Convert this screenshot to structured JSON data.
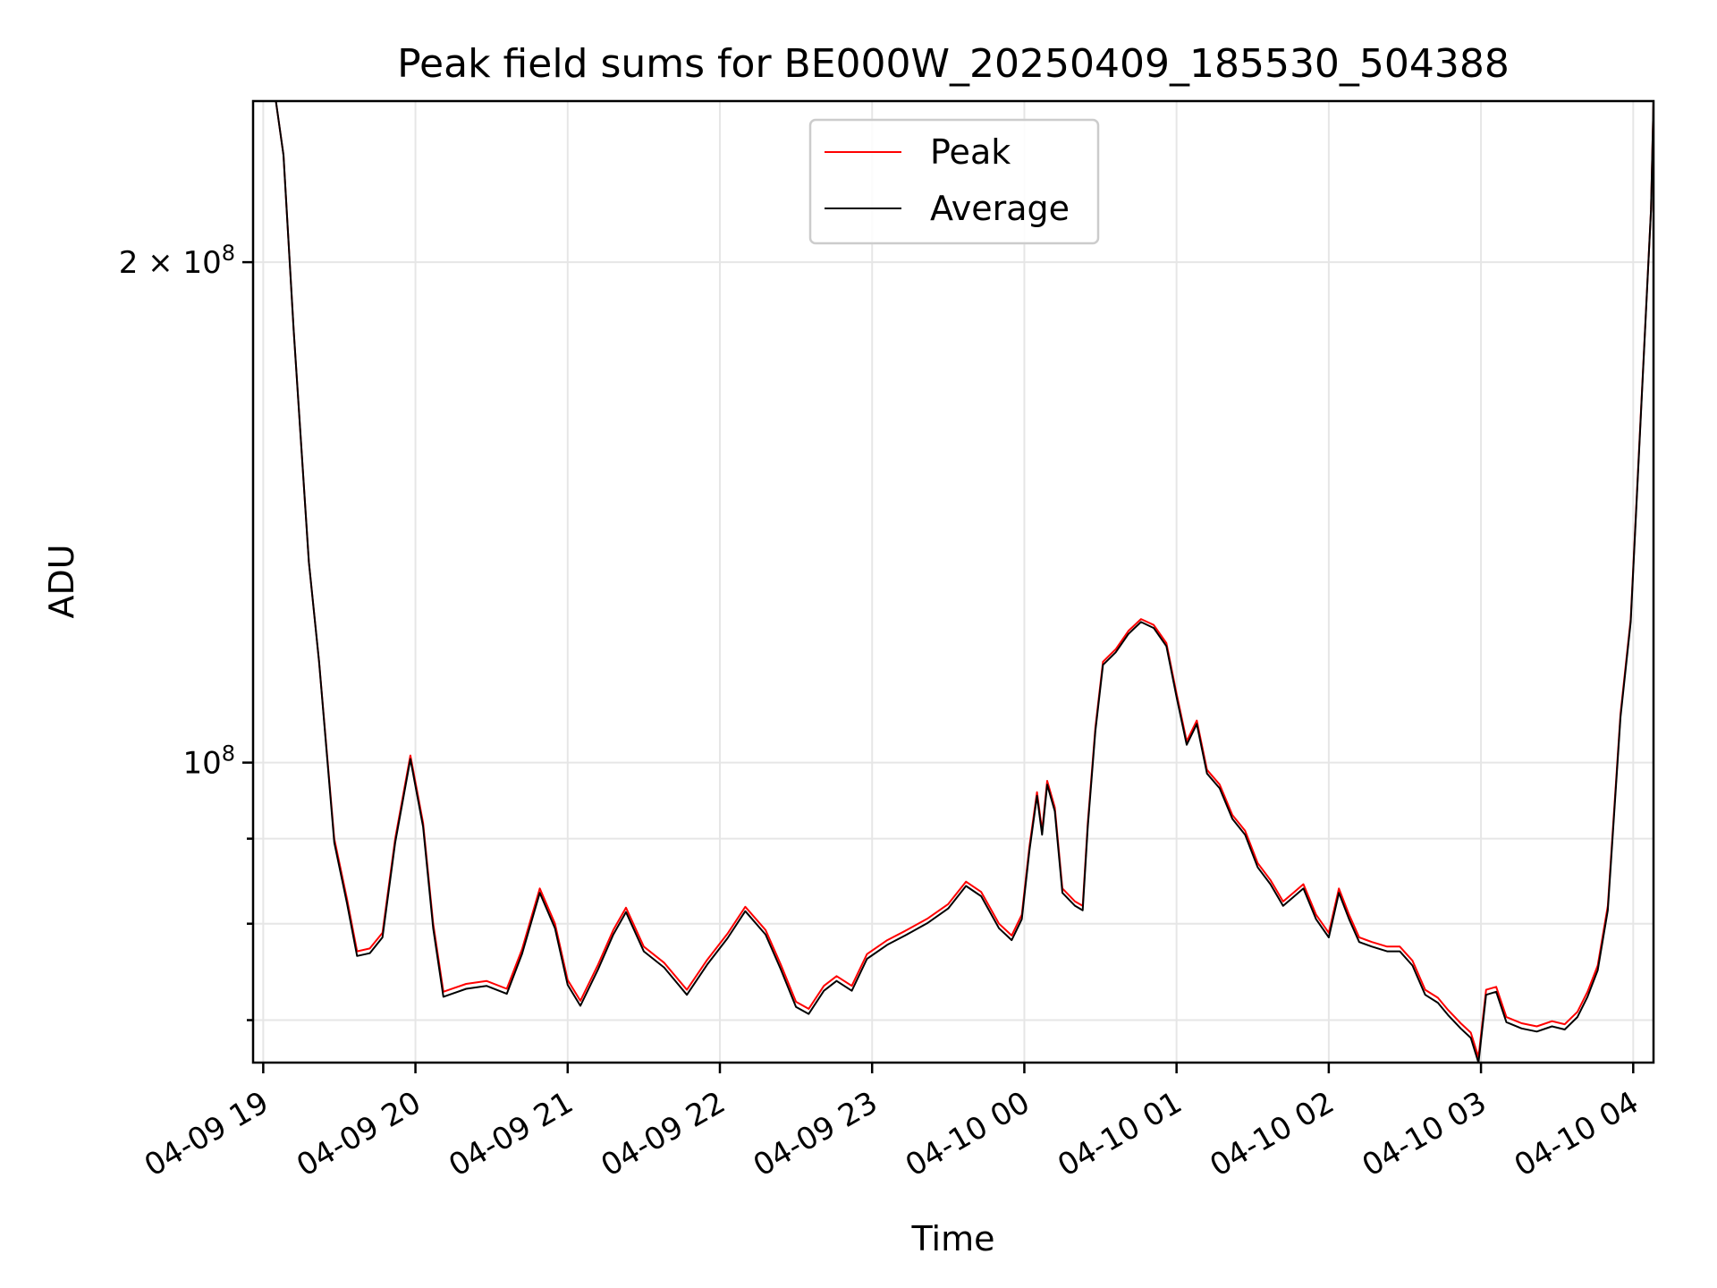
{
  "chart_data": {
    "type": "line",
    "title": "Peak field sums for BE000W_20250409_185530_504388",
    "xlabel": "Time",
    "ylabel": "ADU",
    "y_scale": "log",
    "ylim": [
      66000000,
      250000000
    ],
    "xlim": [
      "2025-04-09 18:56",
      "2025-04-10 04:08"
    ],
    "x_ticks": [
      {
        "t": "2025-04-09 19:00",
        "label": "04-09 19"
      },
      {
        "t": "2025-04-09 20:00",
        "label": "04-09 20"
      },
      {
        "t": "2025-04-09 21:00",
        "label": "04-09 21"
      },
      {
        "t": "2025-04-09 22:00",
        "label": "04-09 22"
      },
      {
        "t": "2025-04-09 23:00",
        "label": "04-09 23"
      },
      {
        "t": "2025-04-10 00:00",
        "label": "04-10 00"
      },
      {
        "t": "2025-04-10 01:00",
        "label": "04-10 01"
      },
      {
        "t": "2025-04-10 02:00",
        "label": "04-10 02"
      },
      {
        "t": "2025-04-10 03:00",
        "label": "04-10 03"
      },
      {
        "t": "2025-04-10 04:00",
        "label": "04-10 04"
      }
    ],
    "y_ticks_major": [
      {
        "value": 100000000,
        "base": "10",
        "exp": "8",
        "mult": ""
      },
      {
        "value": 200000000,
        "base": "10",
        "exp": "8",
        "mult": "2 × "
      }
    ],
    "y_ticks_minor": [
      70000000,
      80000000,
      90000000
    ],
    "grid": true,
    "legend_position": "top-center",
    "series": [
      {
        "name": "Peak",
        "color": "#ff0000",
        "points": [
          [
            "2025-04-09 18:56",
            250000000
          ],
          [
            "2025-04-09 19:05",
            250000000
          ],
          [
            "2025-04-09 19:08",
            232000000
          ],
          [
            "2025-04-09 19:12",
            182000000
          ],
          [
            "2025-04-09 19:18",
            132000000
          ],
          [
            "2025-04-09 19:22",
            115000000
          ],
          [
            "2025-04-09 19:28",
            90000000
          ],
          [
            "2025-04-09 19:33",
            82800000
          ],
          [
            "2025-04-09 19:37",
            77000000
          ],
          [
            "2025-04-09 19:42",
            77300000
          ],
          [
            "2025-04-09 19:47",
            79000000
          ],
          [
            "2025-04-09 19:52",
            90000000
          ],
          [
            "2025-04-09 19:58",
            101000000
          ],
          [
            "2025-04-09 20:03",
            92000000
          ],
          [
            "2025-04-09 20:07",
            80000000
          ],
          [
            "2025-04-09 20:11",
            72800000
          ],
          [
            "2025-04-09 20:20",
            73600000
          ],
          [
            "2025-04-09 20:28",
            73900000
          ],
          [
            "2025-04-09 20:36",
            73100000
          ],
          [
            "2025-04-09 20:42",
            77200000
          ],
          [
            "2025-04-09 20:49",
            84000000
          ],
          [
            "2025-04-09 20:55",
            80000000
          ],
          [
            "2025-04-09 21:00",
            74000000
          ],
          [
            "2025-04-09 21:05",
            71900000
          ],
          [
            "2025-04-09 21:12",
            75600000
          ],
          [
            "2025-04-09 21:18",
            79300000
          ],
          [
            "2025-04-09 21:23",
            81800000
          ],
          [
            "2025-04-09 21:30",
            77500000
          ],
          [
            "2025-04-09 21:38",
            75800000
          ],
          [
            "2025-04-09 21:47",
            73000000
          ],
          [
            "2025-04-09 21:55",
            76100000
          ],
          [
            "2025-04-09 22:03",
            78900000
          ],
          [
            "2025-04-09 22:10",
            81900000
          ],
          [
            "2025-04-09 22:18",
            79300000
          ],
          [
            "2025-04-09 22:24",
            75600000
          ],
          [
            "2025-04-09 22:30",
            71800000
          ],
          [
            "2025-04-09 22:35",
            71100000
          ],
          [
            "2025-04-09 22:41",
            73400000
          ],
          [
            "2025-04-09 22:46",
            74400000
          ],
          [
            "2025-04-09 22:52",
            73400000
          ],
          [
            "2025-04-09 22:58",
            76700000
          ],
          [
            "2025-04-09 23:06",
            78200000
          ],
          [
            "2025-04-09 23:13",
            79200000
          ],
          [
            "2025-04-09 23:22",
            80600000
          ],
          [
            "2025-04-09 23:30",
            82200000
          ],
          [
            "2025-04-09 23:37",
            84800000
          ],
          [
            "2025-04-09 23:43",
            83600000
          ],
          [
            "2025-04-09 23:50",
            80000000
          ],
          [
            "2025-04-09 23:55",
            78700000
          ],
          [
            "2025-04-09 23:59",
            81000000
          ],
          [
            "2025-04-10 00:02",
            89000000
          ],
          [
            "2025-04-10 00:05",
            96000000
          ],
          [
            "2025-04-10 00:07",
            91000000
          ],
          [
            "2025-04-10 00:09",
            97500000
          ],
          [
            "2025-04-10 00:12",
            94000000
          ],
          [
            "2025-04-10 00:15",
            84000000
          ],
          [
            "2025-04-10 00:20",
            82500000
          ],
          [
            "2025-04-10 00:23",
            82000000
          ],
          [
            "2025-04-10 00:25",
            92000000
          ],
          [
            "2025-04-10 00:28",
            105000000
          ],
          [
            "2025-04-10 00:31",
            115000000
          ],
          [
            "2025-04-10 00:36",
            117000000
          ],
          [
            "2025-04-10 00:41",
            120000000
          ],
          [
            "2025-04-10 00:46",
            122000000
          ],
          [
            "2025-04-10 00:51",
            121000000
          ],
          [
            "2025-04-10 00:56",
            118000000
          ],
          [
            "2025-04-10 01:00",
            110000000
          ],
          [
            "2025-04-10 01:04",
            103000000
          ],
          [
            "2025-04-10 01:08",
            106000000
          ],
          [
            "2025-04-10 01:12",
            99000000
          ],
          [
            "2025-04-10 01:17",
            97000000
          ],
          [
            "2025-04-10 01:22",
            93000000
          ],
          [
            "2025-04-10 01:27",
            91000000
          ],
          [
            "2025-04-10 01:32",
            87000000
          ],
          [
            "2025-04-10 01:37",
            85000000
          ],
          [
            "2025-04-10 01:42",
            82500000
          ],
          [
            "2025-04-10 01:46",
            83500000
          ],
          [
            "2025-04-10 01:50",
            84500000
          ],
          [
            "2025-04-10 01:55",
            81000000
          ],
          [
            "2025-04-10 02:00",
            79000000
          ],
          [
            "2025-04-10 02:04",
            84000000
          ],
          [
            "2025-04-10 02:08",
            81000000
          ],
          [
            "2025-04-10 02:12",
            78500000
          ],
          [
            "2025-04-10 02:17",
            78000000
          ],
          [
            "2025-04-10 02:23",
            77500000
          ],
          [
            "2025-04-10 02:28",
            77500000
          ],
          [
            "2025-04-10 02:33",
            76000000
          ],
          [
            "2025-04-10 02:38",
            73000000
          ],
          [
            "2025-04-10 02:43",
            72200000
          ],
          [
            "2025-04-10 02:47",
            71000000
          ],
          [
            "2025-04-10 02:52",
            69700000
          ],
          [
            "2025-04-10 02:56",
            68800000
          ],
          [
            "2025-04-10 02:59",
            66500000
          ],
          [
            "2025-04-10 03:02",
            73000000
          ],
          [
            "2025-04-10 03:06",
            73300000
          ],
          [
            "2025-04-10 03:10",
            70300000
          ],
          [
            "2025-04-10 03:16",
            69700000
          ],
          [
            "2025-04-10 03:22",
            69400000
          ],
          [
            "2025-04-10 03:28",
            69900000
          ],
          [
            "2025-04-10 03:33",
            69600000
          ],
          [
            "2025-04-10 03:38",
            70800000
          ],
          [
            "2025-04-10 03:42",
            72800000
          ],
          [
            "2025-04-10 03:46",
            75500000
          ],
          [
            "2025-04-10 03:50",
            82000000
          ],
          [
            "2025-04-10 03:55",
            107000000
          ],
          [
            "2025-04-10 03:59",
            122000000
          ],
          [
            "2025-04-10 04:03",
            162000000
          ],
          [
            "2025-04-10 04:07",
            215000000
          ],
          [
            "2025-04-10 04:08",
            250000000
          ]
        ]
      },
      {
        "name": "Average",
        "color": "#000000",
        "points": [
          [
            "2025-04-09 18:56",
            250000000
          ],
          [
            "2025-04-09 19:05",
            250000000
          ],
          [
            "2025-04-09 19:08",
            232000000
          ],
          [
            "2025-04-09 19:12",
            182000000
          ],
          [
            "2025-04-09 19:18",
            132000000
          ],
          [
            "2025-04-09 19:22",
            115000000
          ],
          [
            "2025-04-09 19:28",
            89500000
          ],
          [
            "2025-04-09 19:33",
            82300000
          ],
          [
            "2025-04-09 19:37",
            76500000
          ],
          [
            "2025-04-09 19:42",
            76800000
          ],
          [
            "2025-04-09 19:47",
            78500000
          ],
          [
            "2025-04-09 19:52",
            89500000
          ],
          [
            "2025-04-09 19:58",
            100500000
          ],
          [
            "2025-04-09 20:03",
            91500000
          ],
          [
            "2025-04-09 20:07",
            79500000
          ],
          [
            "2025-04-09 20:11",
            72300000
          ],
          [
            "2025-04-09 20:20",
            73100000
          ],
          [
            "2025-04-09 20:28",
            73400000
          ],
          [
            "2025-04-09 20:36",
            72600000
          ],
          [
            "2025-04-09 20:42",
            76700000
          ],
          [
            "2025-04-09 20:49",
            83500000
          ],
          [
            "2025-04-09 20:55",
            79500000
          ],
          [
            "2025-04-09 21:00",
            73500000
          ],
          [
            "2025-04-09 21:05",
            71400000
          ],
          [
            "2025-04-09 21:12",
            75100000
          ],
          [
            "2025-04-09 21:18",
            78800000
          ],
          [
            "2025-04-09 21:23",
            81300000
          ],
          [
            "2025-04-09 21:30",
            77000000
          ],
          [
            "2025-04-09 21:38",
            75300000
          ],
          [
            "2025-04-09 21:47",
            72500000
          ],
          [
            "2025-04-09 21:55",
            75600000
          ],
          [
            "2025-04-09 22:03",
            78400000
          ],
          [
            "2025-04-09 22:10",
            81400000
          ],
          [
            "2025-04-09 22:18",
            78800000
          ],
          [
            "2025-04-09 22:24",
            75100000
          ],
          [
            "2025-04-09 22:30",
            71300000
          ],
          [
            "2025-04-09 22:35",
            70600000
          ],
          [
            "2025-04-09 22:41",
            72900000
          ],
          [
            "2025-04-09 22:46",
            73900000
          ],
          [
            "2025-04-09 22:52",
            72900000
          ],
          [
            "2025-04-09 22:58",
            76200000
          ],
          [
            "2025-04-09 23:06",
            77700000
          ],
          [
            "2025-04-09 23:13",
            78700000
          ],
          [
            "2025-04-09 23:22",
            80100000
          ],
          [
            "2025-04-09 23:30",
            81700000
          ],
          [
            "2025-04-09 23:37",
            84300000
          ],
          [
            "2025-04-09 23:43",
            83100000
          ],
          [
            "2025-04-09 23:50",
            79500000
          ],
          [
            "2025-04-09 23:55",
            78200000
          ],
          [
            "2025-04-09 23:59",
            80500000
          ],
          [
            "2025-04-10 00:02",
            88500000
          ],
          [
            "2025-04-10 00:05",
            95500000
          ],
          [
            "2025-04-10 00:07",
            90500000
          ],
          [
            "2025-04-10 00:09",
            97000000
          ],
          [
            "2025-04-10 00:12",
            93500000
          ],
          [
            "2025-04-10 00:15",
            83500000
          ],
          [
            "2025-04-10 00:20",
            82000000
          ],
          [
            "2025-04-10 00:23",
            81500000
          ],
          [
            "2025-04-10 00:25",
            91500000
          ],
          [
            "2025-04-10 00:28",
            104500000
          ],
          [
            "2025-04-10 00:31",
            114500000
          ],
          [
            "2025-04-10 00:36",
            116500000
          ],
          [
            "2025-04-10 00:41",
            119500000
          ],
          [
            "2025-04-10 00:46",
            121500000
          ],
          [
            "2025-04-10 00:51",
            120500000
          ],
          [
            "2025-04-10 00:56",
            117500000
          ],
          [
            "2025-04-10 01:00",
            109500000
          ],
          [
            "2025-04-10 01:04",
            102500000
          ],
          [
            "2025-04-10 01:08",
            105500000
          ],
          [
            "2025-04-10 01:12",
            98500000
          ],
          [
            "2025-04-10 01:17",
            96500000
          ],
          [
            "2025-04-10 01:22",
            92500000
          ],
          [
            "2025-04-10 01:27",
            90500000
          ],
          [
            "2025-04-10 01:32",
            86500000
          ],
          [
            "2025-04-10 01:37",
            84500000
          ],
          [
            "2025-04-10 01:42",
            82000000
          ],
          [
            "2025-04-10 01:46",
            83000000
          ],
          [
            "2025-04-10 01:50",
            84000000
          ],
          [
            "2025-04-10 01:55",
            80500000
          ],
          [
            "2025-04-10 02:00",
            78500000
          ],
          [
            "2025-04-10 02:04",
            83500000
          ],
          [
            "2025-04-10 02:08",
            80500000
          ],
          [
            "2025-04-10 02:12",
            78000000
          ],
          [
            "2025-04-10 02:17",
            77500000
          ],
          [
            "2025-04-10 02:23",
            77000000
          ],
          [
            "2025-04-10 02:28",
            77000000
          ],
          [
            "2025-04-10 02:33",
            75500000
          ],
          [
            "2025-04-10 02:38",
            72500000
          ],
          [
            "2025-04-10 02:43",
            71700000
          ],
          [
            "2025-04-10 02:47",
            70500000
          ],
          [
            "2025-04-10 02:52",
            69200000
          ],
          [
            "2025-04-10 02:56",
            68300000
          ],
          [
            "2025-04-10 02:59",
            66000000
          ],
          [
            "2025-04-10 03:02",
            72500000
          ],
          [
            "2025-04-10 03:06",
            72800000
          ],
          [
            "2025-04-10 03:10",
            69800000
          ],
          [
            "2025-04-10 03:16",
            69200000
          ],
          [
            "2025-04-10 03:22",
            68900000
          ],
          [
            "2025-04-10 03:28",
            69400000
          ],
          [
            "2025-04-10 03:33",
            69100000
          ],
          [
            "2025-04-10 03:38",
            70300000
          ],
          [
            "2025-04-10 03:42",
            72300000
          ],
          [
            "2025-04-10 03:46",
            75000000
          ],
          [
            "2025-04-10 03:50",
            81500000
          ],
          [
            "2025-04-10 03:55",
            106500000
          ],
          [
            "2025-04-10 03:59",
            121500000
          ],
          [
            "2025-04-10 04:03",
            161500000
          ],
          [
            "2025-04-10 04:07",
            215000000
          ],
          [
            "2025-04-10 04:08",
            250000000
          ]
        ]
      }
    ]
  }
}
